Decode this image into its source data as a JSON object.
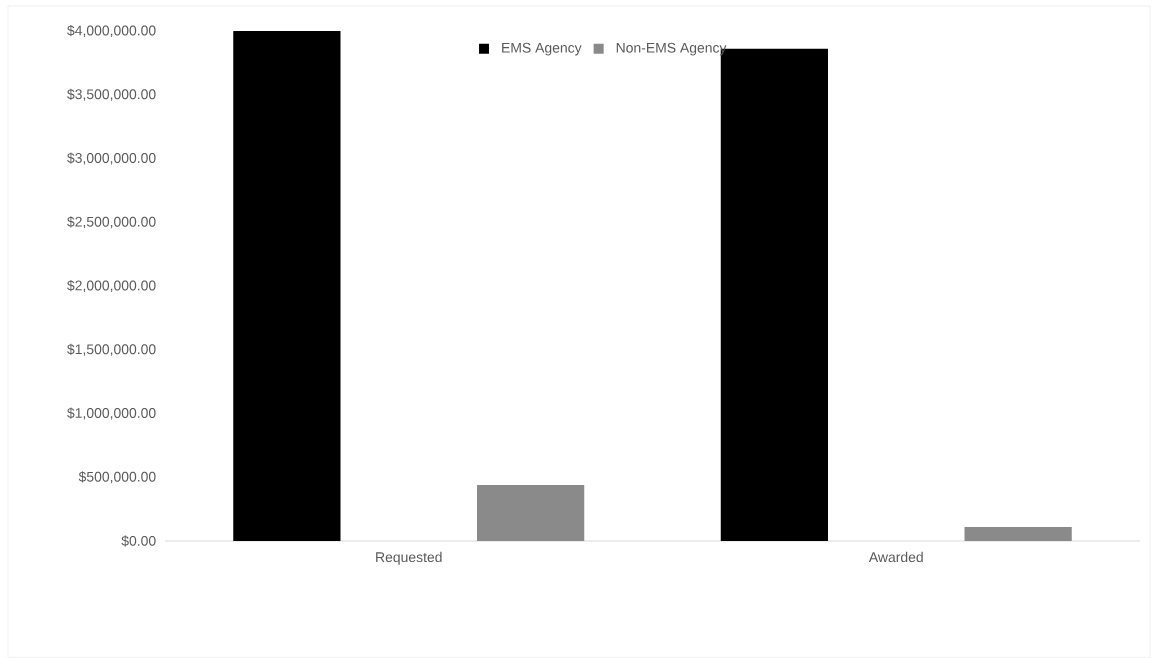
{
  "chart_data": {
    "type": "bar",
    "categories": [
      "Requested",
      "Awarded"
    ],
    "series": [
      {
        "name": "EMS Agency",
        "color": "#000000",
        "values": [
          4000000,
          3860000
        ]
      },
      {
        "name": "Non-EMS Agency",
        "color": "#8a8a8a",
        "values": [
          440000,
          110000
        ]
      }
    ],
    "ylim": [
      0,
      4000000
    ],
    "yticks": [
      {
        "value": 0,
        "label": "$0.00"
      },
      {
        "value": 500000,
        "label": "$500,000.00"
      },
      {
        "value": 1000000,
        "label": "$1,000,000.00"
      },
      {
        "value": 1500000,
        "label": "$1,500,000.00"
      },
      {
        "value": 2000000,
        "label": "$2,000,000.00"
      },
      {
        "value": 2500000,
        "label": "$2,500,000.00"
      },
      {
        "value": 3000000,
        "label": "$3,000,000.00"
      },
      {
        "value": 3500000,
        "label": "$3,500,000.00"
      },
      {
        "value": 4000000,
        "label": "$4,000,000.00"
      }
    ],
    "grid": false,
    "legend": "top"
  }
}
